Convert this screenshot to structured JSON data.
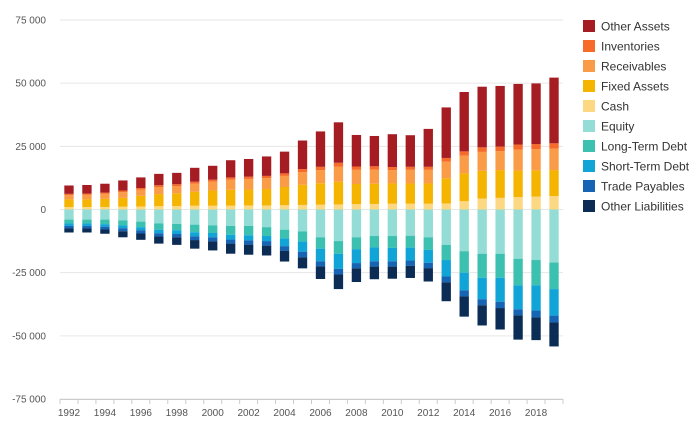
{
  "chart_data": {
    "type": "bar",
    "stacked": true,
    "title": "",
    "xlabel": "",
    "ylabel": "",
    "ylim": [
      -75000,
      75000
    ],
    "yticks": [
      75000,
      50000,
      25000,
      0,
      -25000,
      -50000,
      -75000
    ],
    "ytick_labels": [
      "75 000",
      "50 000",
      "25 000",
      "0",
      "-25 000",
      "-50 000",
      "-75 000"
    ],
    "xtick_labels": [
      "1992",
      "1994",
      "1996",
      "1998",
      "2000",
      "2002",
      "2004",
      "2006",
      "2008",
      "2010",
      "2012",
      "2014",
      "2016",
      "2018"
    ],
    "grid": true,
    "legend_position": "right",
    "categories": [
      "1992",
      "1993",
      "1994",
      "1995",
      "1996",
      "1997",
      "1998",
      "1999",
      "2000",
      "2001",
      "2002",
      "2003",
      "2004",
      "2005",
      "2006",
      "2007",
      "2008",
      "2009",
      "2010",
      "2011",
      "2012",
      "2013",
      "2014",
      "2015",
      "2016",
      "2017",
      "2018",
      "2019"
    ],
    "series": [
      {
        "name": "Cash",
        "group": "assets",
        "color": "#fdd882",
        "values": [
          1000,
          1000,
          1000,
          1100,
          1200,
          1300,
          1400,
          1500,
          1500,
          1500,
          1600,
          1600,
          1700,
          1800,
          1900,
          2000,
          2100,
          2200,
          2300,
          2300,
          2300,
          2400,
          3300,
          4300,
          4600,
          4900,
          5100,
          5300
        ]
      },
      {
        "name": "Fixed Assets",
        "group": "assets",
        "color": "#f5b400",
        "values": [
          3000,
          3000,
          3200,
          3500,
          4200,
          4800,
          5000,
          5500,
          6000,
          6300,
          6300,
          6500,
          7200,
          8000,
          8500,
          9000,
          8000,
          8000,
          8000,
          8000,
          8000,
          10000,
          11000,
          11000,
          11000,
          10500,
          10400,
          10300
        ]
      },
      {
        "name": "Receivables",
        "group": "assets",
        "color": "#fa9b48",
        "values": [
          1700,
          1800,
          2000,
          2300,
          2500,
          2800,
          2900,
          3200,
          3500,
          4000,
          4200,
          4300,
          4400,
          5000,
          5200,
          6000,
          5600,
          5600,
          5300,
          5400,
          5400,
          6500,
          7000,
          7500,
          7500,
          8300,
          8400,
          8500
        ]
      },
      {
        "name": "Inventories",
        "group": "assets",
        "color": "#f76b2a",
        "values": [
          500,
          500,
          500,
          600,
          600,
          700,
          700,
          800,
          800,
          900,
          900,
          900,
          1000,
          1200,
          1300,
          1500,
          1300,
          1300,
          1200,
          1200,
          1200,
          1500,
          1700,
          1800,
          1800,
          2000,
          2000,
          2100
        ]
      },
      {
        "name": "Other Assets",
        "group": "assets",
        "color": "#a51c22",
        "values": [
          3300,
          3400,
          3500,
          4000,
          4200,
          4500,
          4500,
          5500,
          5500,
          6800,
          7000,
          7700,
          8600,
          11300,
          14000,
          16000,
          12500,
          12000,
          13000,
          12500,
          15000,
          20000,
          23500,
          24000,
          24000,
          24000,
          24000,
          26000
        ]
      },
      {
        "name": "Equity",
        "group": "liabilities",
        "color": "#93ddd6",
        "values": [
          4000,
          4000,
          4000,
          4300,
          4800,
          5500,
          5700,
          6000,
          6300,
          6500,
          6500,
          7000,
          8000,
          8700,
          11000,
          12500,
          11000,
          10500,
          10500,
          10400,
          11000,
          14000,
          16500,
          17500,
          17500,
          19500,
          20000,
          21000
        ]
      },
      {
        "name": "Long-Term Debt",
        "group": "liabilities",
        "color": "#3cc0b0",
        "values": [
          1500,
          1500,
          1800,
          2000,
          2200,
          2500,
          2500,
          3000,
          3000,
          3500,
          3700,
          3500,
          3500,
          4000,
          4500,
          5000,
          4700,
          4500,
          4700,
          4700,
          5000,
          6000,
          8500,
          9500,
          9500,
          10500,
          10000,
          10500
        ]
      },
      {
        "name": "Short-Term Debt",
        "group": "liabilities",
        "color": "#10a5d6",
        "values": [
          1000,
          1000,
          1000,
          1100,
          1200,
          1400,
          1500,
          1600,
          1700,
          1900,
          2000,
          2000,
          3000,
          4000,
          5000,
          6000,
          5500,
          5500,
          5300,
          5100,
          5100,
          6500,
          7000,
          8500,
          9500,
          9500,
          10000,
          10500
        ]
      },
      {
        "name": "Trade Payables",
        "group": "liabilities",
        "color": "#1565b4",
        "values": [
          1000,
          1000,
          1100,
          1200,
          1300,
          1300,
          1300,
          1500,
          1600,
          1600,
          1700,
          1800,
          1800,
          2200,
          2000,
          2200,
          2100,
          2100,
          2100,
          2100,
          2100,
          2300,
          2400,
          2400,
          2500,
          2400,
          2700,
          2700
        ]
      },
      {
        "name": "Other Liabilities",
        "group": "liabilities",
        "color": "#0b2d55",
        "values": [
          1600,
          1600,
          1700,
          2400,
          2500,
          2800,
          3000,
          3400,
          3600,
          4000,
          4000,
          3900,
          4300,
          4400,
          5000,
          5800,
          5400,
          5000,
          4800,
          4800,
          5300,
          7500,
          8000,
          8000,
          8500,
          9600,
          9000,
          9500
        ]
      }
    ],
    "legend_order": [
      "Other Assets",
      "Inventories",
      "Receivables",
      "Fixed Assets",
      "Cash",
      "Equity",
      "Long-Term Debt",
      "Short-Term Debt",
      "Trade Payables",
      "Other Liabilities"
    ]
  }
}
